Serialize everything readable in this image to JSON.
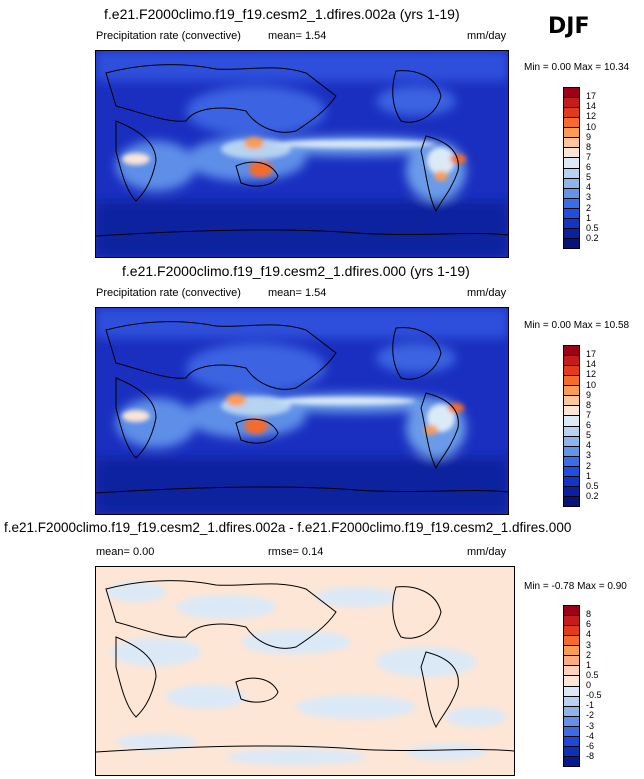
{
  "season": "DJF",
  "panels": [
    {
      "title": "f.e21.F2000climo.f19_f19.cesm2_1.dfires.002a (yrs 1-19)",
      "variable": "Precipitation rate (convective)",
      "mean": "mean=   1.54",
      "units": "mm/day",
      "minmax": "Min =   0.00 Max =  10.34",
      "colorbar": {
        "labels": [
          "17",
          "14",
          "12",
          "10",
          "9",
          "8",
          "7",
          "6",
          "5",
          "4",
          "3",
          "2",
          "1",
          "0.5",
          "0.2"
        ],
        "colors": [
          "#9e0016",
          "#c51b1b",
          "#e43a1c",
          "#f66a2c",
          "#fb9b55",
          "#fdc69c",
          "#fbe5d5",
          "#dbeaf7",
          "#b6d3f0",
          "#8cb6eb",
          "#6095e8",
          "#3a6ee6",
          "#1f4fdc",
          "#1334c4",
          "#0b1f9f",
          "#06137a"
        ]
      }
    },
    {
      "title": "f.e21.F2000climo.f19_f19.cesm2_1.dfires.000 (yrs 1-19)",
      "variable": "Precipitation rate (convective)",
      "mean": "mean=   1.54",
      "units": "mm/day",
      "minmax": "Min =   0.00 Max =  10.58",
      "colorbar": {
        "labels": [
          "17",
          "14",
          "12",
          "10",
          "9",
          "8",
          "7",
          "6",
          "5",
          "4",
          "3",
          "2",
          "1",
          "0.5",
          "0.2"
        ],
        "colors": [
          "#9e0016",
          "#c51b1b",
          "#e43a1c",
          "#f66a2c",
          "#fb9b55",
          "#fdc69c",
          "#fbe5d5",
          "#dbeaf7",
          "#b6d3f0",
          "#8cb6eb",
          "#6095e8",
          "#3a6ee6",
          "#1f4fdc",
          "#1334c4",
          "#0b1f9f",
          "#06137a"
        ]
      }
    },
    {
      "title": "f.e21.F2000climo.f19_f19.cesm2_1.dfires.002a - f.e21.F2000climo.f19_f19.cesm2_1.dfires.000",
      "mean": "mean=   0.00",
      "rmse": "rmse=   0.14",
      "units": "mm/day",
      "minmax": "Min =  -0.78 Max =   0.90",
      "colorbar": {
        "labels": [
          "8",
          "6",
          "4",
          "3",
          "2",
          "1",
          "0.5",
          "0",
          "-0.5",
          "-1",
          "-2",
          "-3",
          "-4",
          "-6",
          "-8"
        ],
        "colors": [
          "#9e0016",
          "#c51b1b",
          "#e43a1c",
          "#f66a2c",
          "#fb9b55",
          "#fdab83",
          "#fdd3bf",
          "#fde6d6",
          "#dbe9f7",
          "#b8d1f0",
          "#8fb4eb",
          "#6491e7",
          "#3c6be5",
          "#1f48d6",
          "#1030b8",
          "#071a8e"
        ]
      }
    }
  ]
}
